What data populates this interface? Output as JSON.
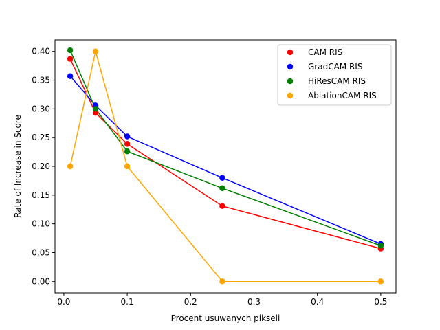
{
  "chart_data": {
    "type": "scatter",
    "title": "",
    "xlabel": "Procent usuwanych pikseli",
    "ylabel": "Rate of Increase in Score",
    "xlim": [
      -0.014,
      0.524
    ],
    "ylim": [
      -0.02,
      0.42
    ],
    "xticks": [
      0.0,
      0.1,
      0.2,
      0.3,
      0.4,
      0.5
    ],
    "xtick_labels": [
      "0.0",
      "0.1",
      "0.2",
      "0.3",
      "0.4",
      "0.5"
    ],
    "yticks": [
      0.0,
      0.05,
      0.1,
      0.15,
      0.2,
      0.25,
      0.3,
      0.35,
      0.4
    ],
    "ytick_labels": [
      "0.00",
      "0.05",
      "0.10",
      "0.15",
      "0.20",
      "0.25",
      "0.30",
      "0.35",
      "0.40"
    ],
    "grid": false,
    "legend_position": "top-right",
    "x": [
      0.01,
      0.05,
      0.1,
      0.25,
      0.5
    ],
    "series": [
      {
        "name": "CAM RIS",
        "color": "#ff0000",
        "values": [
          0.387,
          0.293,
          0.239,
          0.131,
          0.057
        ]
      },
      {
        "name": "GradCAM RIS",
        "color": "#0000ff",
        "values": [
          0.357,
          0.306,
          0.252,
          0.18,
          0.065
        ]
      },
      {
        "name": "HiResCAM RIS",
        "color": "#008000",
        "values": [
          0.402,
          0.3,
          0.226,
          0.162,
          0.062
        ]
      },
      {
        "name": "AblationCAM RIS",
        "color": "#ffa500",
        "values": [
          0.2,
          0.4,
          0.2,
          0.0,
          0.0
        ]
      }
    ]
  }
}
